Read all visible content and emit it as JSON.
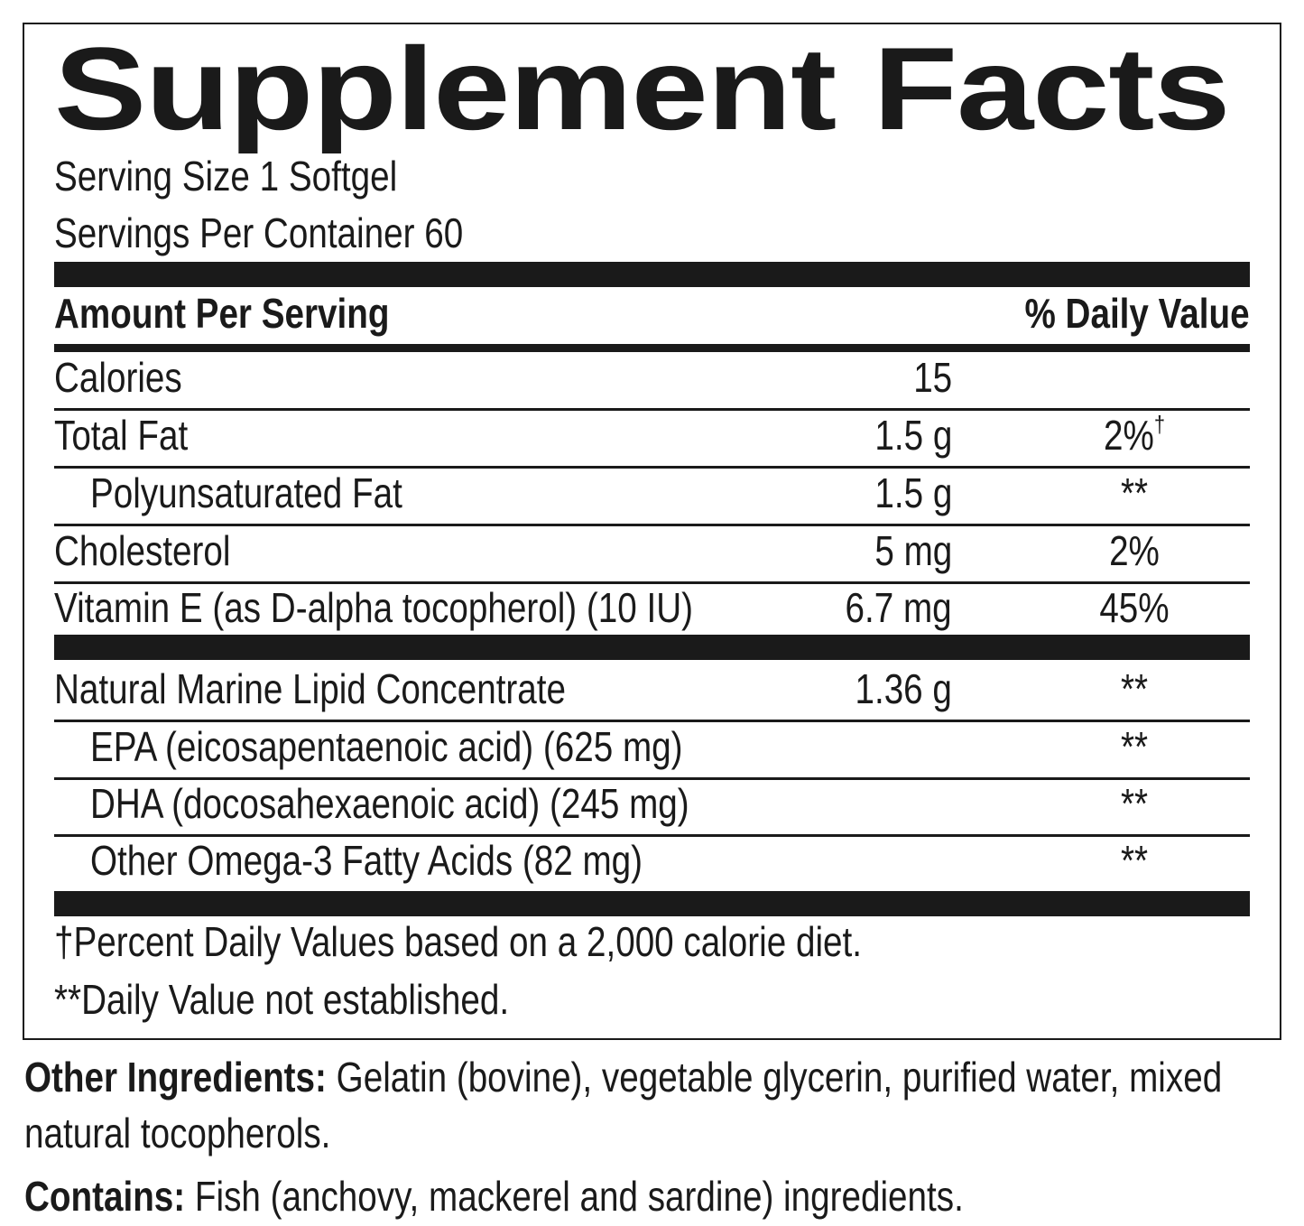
{
  "title": "Supplement Facts",
  "serving_size": "Serving Size 1 Softgel",
  "servings_per_container": "Servings Per Container 60",
  "header": {
    "amount": "Amount Per Serving",
    "daily_value": "% Daily Value"
  },
  "sections": [
    {
      "rows": [
        {
          "name": "Calories",
          "amount": "15"
        },
        {
          "name": "Total Fat",
          "amount": "1.5 g",
          "dv": "2%",
          "dv_note": "†"
        },
        {
          "name": "Polyunsaturated Fat",
          "amount": "1.5 g",
          "dv": "**",
          "indented": true
        },
        {
          "name": "Cholesterol",
          "amount": "5 mg",
          "dv": "2%"
        },
        {
          "name": "Vitamin E (as D-alpha tocopherol) (10 IU)",
          "amount": "6.7 mg",
          "dv": "45%"
        }
      ]
    },
    {
      "rows": [
        {
          "name": "Natural Marine Lipid Concentrate",
          "amount": "1.36 g",
          "dv": "**"
        },
        {
          "name": "EPA (eicosapentaenoic acid) (625 mg)",
          "dv": "**",
          "indented": true
        },
        {
          "name": "DHA (docosahexaenoic acid) (245 mg)",
          "dv": "**",
          "indented": true
        },
        {
          "name": "Other Omega-3 Fatty Acids (82 mg)",
          "dv": "**",
          "indented": true
        }
      ]
    }
  ],
  "footnotes": [
    "†Percent Daily Values based on a 2,000 calorie diet.",
    "**Daily Value not established."
  ],
  "other_ingredients": {
    "label": "Other Ingredients:",
    "text": "Gelatin (bovine), vegetable glycerin, purified water, mixed natural tocopherols."
  },
  "contains": {
    "label": "Contains:",
    "text": "Fish (anchovy, mackerel and sardine) ingredients."
  }
}
